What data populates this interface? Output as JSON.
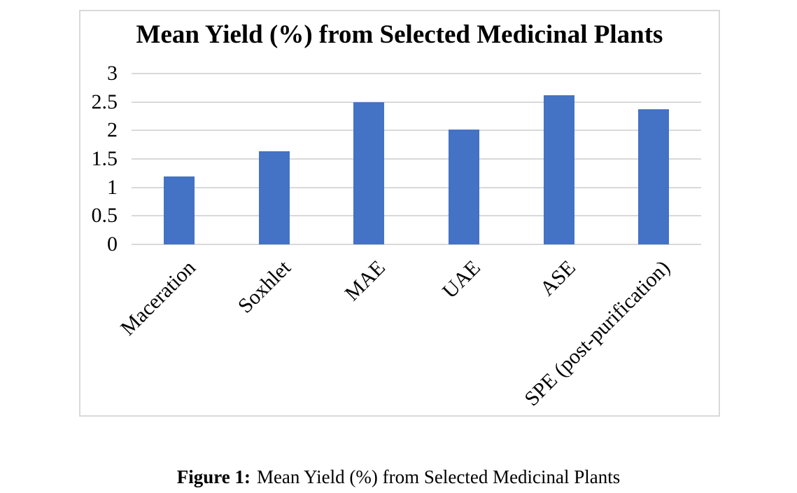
{
  "chart_data": {
    "type": "bar",
    "title": "Mean Yield (%) from Selected Medicinal Plants",
    "categories": [
      "Maceration",
      "Soxhlet",
      "MAE",
      "UAE",
      "ASE",
      "SPE (post-purification)"
    ],
    "values": [
      1.19,
      1.63,
      2.5,
      2.02,
      2.62,
      2.37
    ],
    "xlabel": "",
    "ylabel": "",
    "ylim": [
      0,
      3
    ],
    "yticks": [
      0,
      0.5,
      1,
      1.5,
      2,
      2.5,
      3
    ],
    "ytick_labels": [
      "0",
      "0.5",
      "1",
      "1.5",
      "2",
      "2.5",
      "3"
    ],
    "grid": true,
    "legend": false,
    "bar_color": "#4472C4",
    "gridline_color": "#D9D9D9",
    "frame_border_color": "#D9D9D9",
    "text_color": "#000000"
  },
  "figure": {
    "caption_label": "Figure 1:",
    "caption_text": "Mean Yield (%) from Selected Medicinal Plants"
  }
}
